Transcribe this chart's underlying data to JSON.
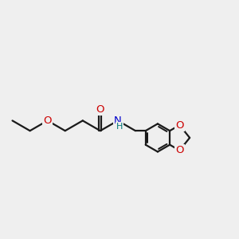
{
  "bg_color": "#efefef",
  "bond_color": "#1a1a1a",
  "O_color": "#cc0000",
  "N_color": "#0000cc",
  "H_color": "#007777",
  "bond_lw": 1.6,
  "font_size": 9.5,
  "xlim": [
    0.0,
    10.5
  ],
  "ylim": [
    3.0,
    7.5
  ]
}
